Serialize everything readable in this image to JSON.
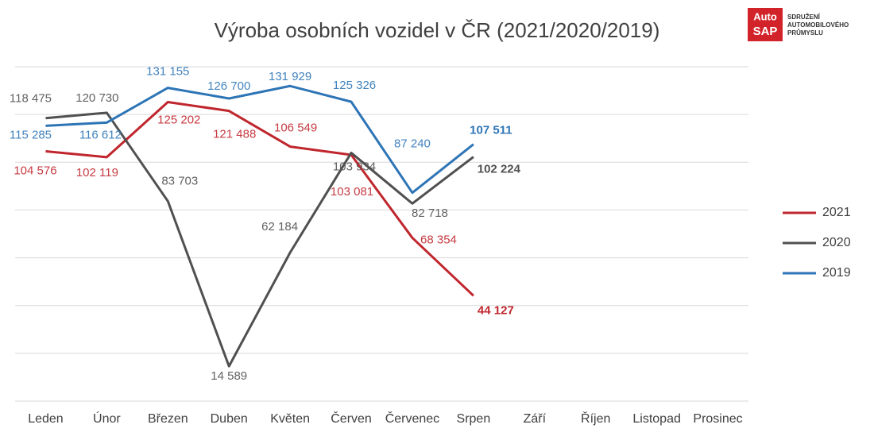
{
  "chart_data": {
    "type": "line",
    "title": "Výroba osobních vozidel v ČR (2021/2020/2019)",
    "logo": {
      "mark": [
        "Auto",
        "SAP"
      ],
      "lines": [
        "SDRUŽENÍ",
        "AUTOMOBILOVÉHO",
        "PRŮMYSLU"
      ]
    },
    "categories": [
      "Leden",
      "Únor",
      "Březen",
      "Duben",
      "Květen",
      "Červen",
      "Červenec",
      "Srpen",
      "Září",
      "Říjen",
      "Listopad",
      "Prosinec"
    ],
    "series": [
      {
        "name": "2021",
        "color": "#c0262d",
        "values": [
          104576,
          102119,
          125202,
          121488,
          106549,
          103081,
          68354,
          44127,
          null,
          null,
          null,
          null
        ],
        "value_labels": [
          "104 576",
          "102 119",
          "125 202",
          "121 488",
          "106 549",
          "103 081",
          "68 354",
          "44 127",
          null,
          null,
          null,
          null
        ]
      },
      {
        "name": "2020",
        "color": "#505050",
        "values": [
          118475,
          120730,
          83703,
          14589,
          62184,
          103934,
          82718,
          102224,
          null,
          null,
          null,
          null
        ],
        "value_labels": [
          "118 475",
          "120 730",
          "83 703",
          "14 589",
          "62 184",
          "103 934",
          "82 718",
          "102 224",
          null,
          null,
          null,
          null
        ]
      },
      {
        "name": "2019",
        "color": "#2e75b6",
        "values": [
          115285,
          116612,
          131155,
          126700,
          131929,
          125326,
          87240,
          107511,
          null,
          null,
          null,
          null
        ],
        "value_labels": [
          "115 285",
          "116 612",
          "131 155",
          "126 700",
          "131 929",
          "125 326",
          "87 240",
          "107 511",
          null,
          null,
          null,
          null
        ]
      }
    ],
    "ylim": [
      0,
      140000
    ],
    "yticks": [
      0,
      20000,
      40000,
      60000,
      80000,
      100000,
      120000,
      140000
    ],
    "grid": true,
    "legend": "right"
  }
}
